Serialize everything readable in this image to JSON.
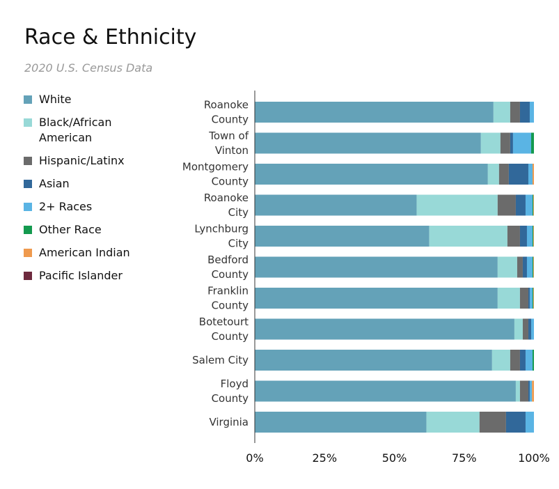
{
  "title": "Race & Ethnicity",
  "subtitle": "2020 U.S. Census Data",
  "chart_data": {
    "type": "bar",
    "orientation": "horizontal",
    "stacked": true,
    "normalized": true,
    "title": "Race & Ethnicity",
    "subtitle": "2020 U.S. Census Data",
    "xlabel": "",
    "ylabel": "",
    "xlim": [
      0,
      100
    ],
    "x_ticks": [
      "0%",
      "25%",
      "50%",
      "75%",
      "100%"
    ],
    "legend_position": "left",
    "categories": [
      [
        "Roanoke",
        "County"
      ],
      [
        "Town of",
        "Vinton"
      ],
      [
        "Montgomery",
        "County"
      ],
      [
        "Roanoke",
        "City"
      ],
      [
        "Lynchburg",
        "City"
      ],
      [
        "Bedford",
        "County"
      ],
      [
        "Franklin",
        "County"
      ],
      [
        "Botetourt",
        "County"
      ],
      [
        "Salem City"
      ],
      [
        "Floyd",
        "County"
      ],
      [
        "Virginia"
      ]
    ],
    "series": [
      {
        "name": "White",
        "color": "#64A2B8",
        "values": [
          85.5,
          81.0,
          83.5,
          58.0,
          62.5,
          87.0,
          87.0,
          93.0,
          85.0,
          93.5,
          61.5
        ]
      },
      {
        "name": "Black/African American",
        "color": "#98D9D7",
        "values": [
          6.0,
          7.0,
          4.0,
          29.0,
          28.0,
          7.0,
          8.0,
          3.0,
          6.5,
          1.5,
          19.0
        ]
      },
      {
        "name": "Hispanic/Latinx",
        "color": "#6B6B6B",
        "values": [
          3.5,
          3.5,
          3.5,
          6.5,
          4.5,
          2.0,
          3.0,
          2.0,
          3.5,
          3.0,
          9.5
        ]
      },
      {
        "name": "Asian",
        "color": "#31689A",
        "values": [
          3.5,
          1.0,
          7.0,
          3.5,
          2.5,
          1.5,
          0.5,
          1.0,
          2.0,
          0.5,
          7.0
        ]
      },
      {
        "name": "2+ Races",
        "color": "#5AB4E4",
        "values": [
          1.5,
          6.5,
          1.5,
          2.5,
          2.0,
          2.0,
          1.0,
          1.0,
          2.5,
          0.8,
          3.5
        ]
      },
      {
        "name": "Other Race",
        "color": "#149A4F",
        "values": [
          0.0,
          1.0,
          0.0,
          0.3,
          0.3,
          0.3,
          0.3,
          0.0,
          0.5,
          0.0,
          0.2
        ]
      },
      {
        "name": "American Indian",
        "color": "#EF9A4E",
        "values": [
          0.0,
          0.0,
          0.5,
          0.2,
          0.2,
          0.2,
          0.2,
          0.0,
          0.0,
          0.7,
          0.3
        ]
      },
      {
        "name": "Pacific Islander",
        "color": "#6E2A3E",
        "values": [
          0.0,
          0.0,
          0.0,
          0.0,
          0.0,
          0.0,
          0.0,
          0.0,
          0.0,
          0.0,
          0.0
        ]
      }
    ]
  }
}
